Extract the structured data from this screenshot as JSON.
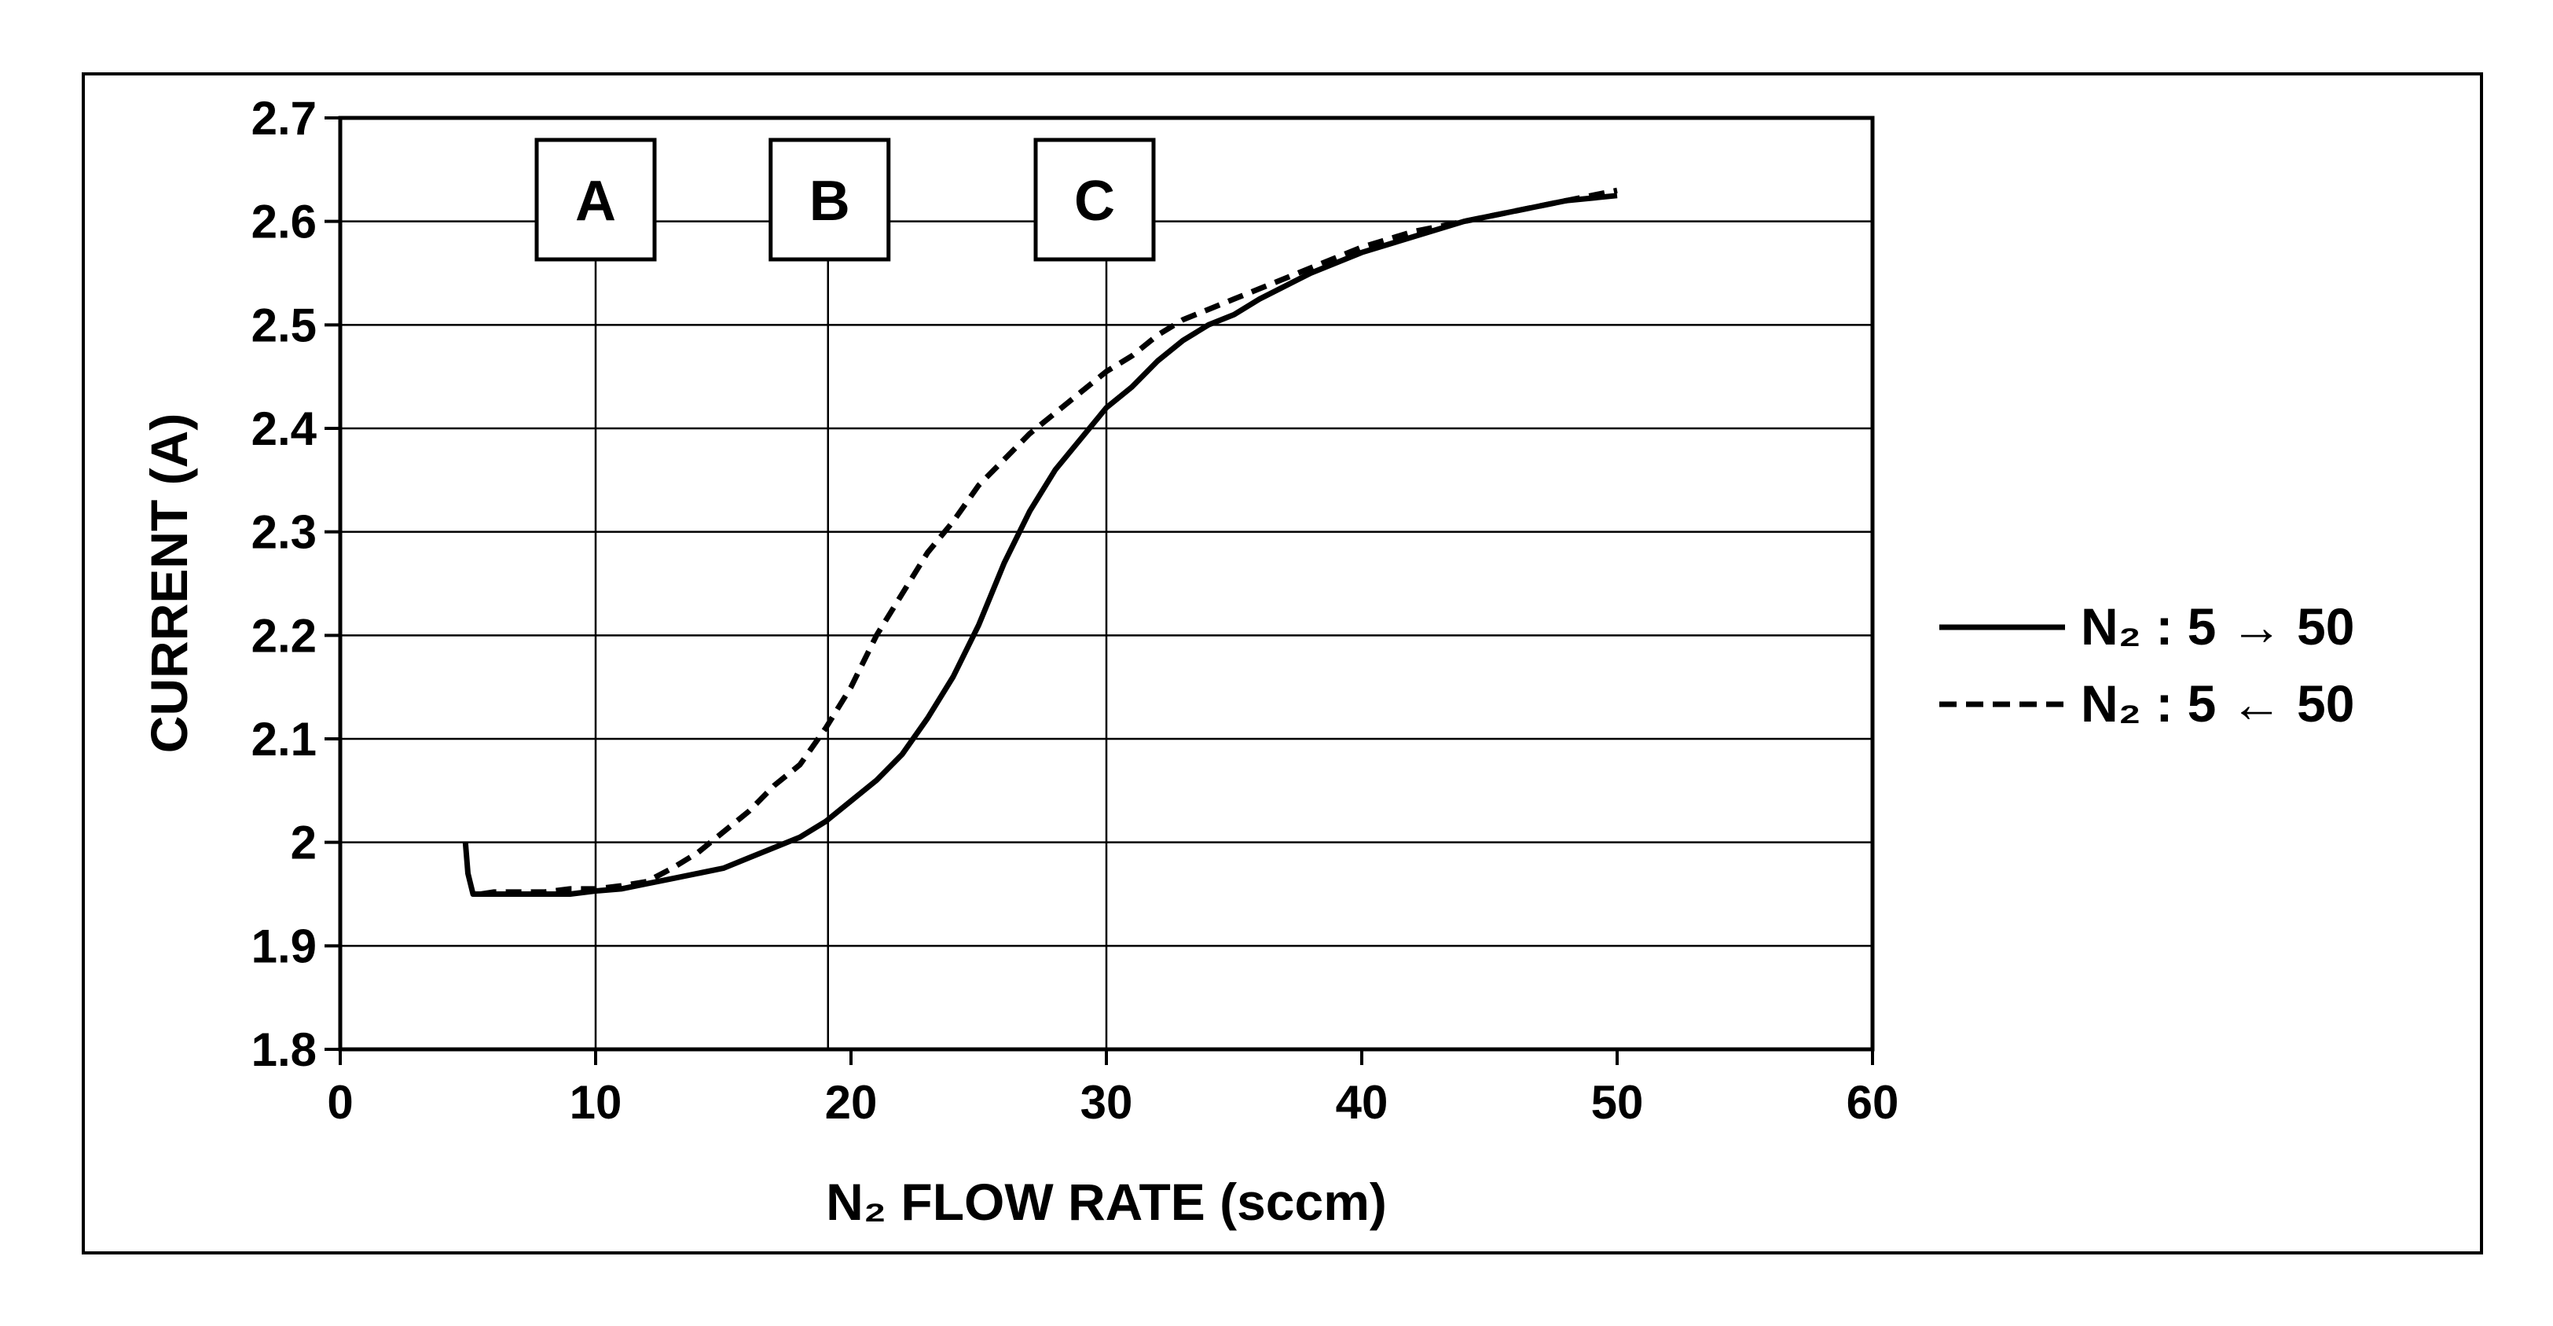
{
  "chart_data": {
    "type": "line",
    "xlabel": "N₂ FLOW RATE (sccm)",
    "ylabel": "CURRENT (A)",
    "xlim": [
      0,
      60
    ],
    "ylim": [
      1.8,
      2.7
    ],
    "xticks": [
      "0",
      "10",
      "20",
      "30",
      "40",
      "50",
      "60"
    ],
    "yticks": [
      "1.8",
      "1.9",
      "2",
      "2.1",
      "2.2",
      "2.3",
      "2.4",
      "2.5",
      "2.6",
      "2.7"
    ],
    "grid": "horizontal",
    "legend_position": "right",
    "markers": [
      {
        "label": "A",
        "x": 10
      },
      {
        "label": "B",
        "x": 19.1
      },
      {
        "label": "C",
        "x": 30
      }
    ],
    "series": [
      {
        "name": "N₂ : 5 → 50",
        "style": "solid",
        "color": "#000000",
        "x": [
          4.9,
          5.0,
          5.2,
          6,
          7,
          8,
          9,
          10,
          11,
          12,
          13,
          14,
          15,
          16,
          17,
          18,
          19,
          20,
          21,
          22,
          23,
          24,
          25,
          26,
          27,
          28,
          29,
          30,
          31,
          32,
          33,
          34,
          35,
          36,
          38,
          40,
          42,
          44,
          46,
          48,
          50
        ],
        "y": [
          2.0,
          1.97,
          1.95,
          1.95,
          1.95,
          1.95,
          1.95,
          1.953,
          1.955,
          1.96,
          1.965,
          1.97,
          1.975,
          1.985,
          1.995,
          2.005,
          2.02,
          2.04,
          2.06,
          2.085,
          2.12,
          2.16,
          2.21,
          2.27,
          2.32,
          2.36,
          2.39,
          2.42,
          2.44,
          2.465,
          2.485,
          2.5,
          2.51,
          2.525,
          2.55,
          2.57,
          2.585,
          2.6,
          2.61,
          2.62,
          2.625
        ]
      },
      {
        "name": "N₂ : 5 ← 50",
        "style": "dashed",
        "color": "#000000",
        "x": [
          5.5,
          6,
          7,
          8,
          9,
          10,
          11,
          12,
          13,
          14,
          15,
          16,
          17,
          18,
          19,
          20,
          21,
          22,
          23,
          24,
          25,
          26,
          27,
          28,
          29,
          30,
          31,
          32,
          33,
          34,
          35,
          36,
          38,
          40,
          42,
          44,
          46,
          48,
          50
        ],
        "y": [
          1.95,
          1.952,
          1.952,
          1.952,
          1.955,
          1.955,
          1.958,
          1.962,
          1.975,
          1.99,
          2.01,
          2.03,
          2.055,
          2.075,
          2.11,
          2.15,
          2.2,
          2.24,
          2.28,
          2.31,
          2.345,
          2.37,
          2.395,
          2.415,
          2.435,
          2.455,
          2.47,
          2.49,
          2.505,
          2.515,
          2.525,
          2.535,
          2.555,
          2.575,
          2.59,
          2.6,
          2.61,
          2.62,
          2.63
        ]
      }
    ]
  }
}
